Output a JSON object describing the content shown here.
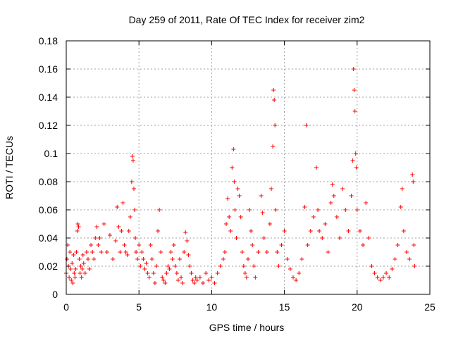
{
  "chart_data": {
    "type": "scatter",
    "title": "Day 259 of 2011, Rate Of TEC Index for receiver zim2",
    "xlabel": "GPS time / hours",
    "ylabel": "ROTI / TECUs",
    "xlim": [
      0,
      25
    ],
    "ylim": [
      0,
      0.18
    ],
    "x_ticks": [
      "0",
      "5",
      "10",
      "15",
      "20",
      "25"
    ],
    "y_ticks": [
      "0",
      "0.02",
      "0.04",
      "0.06",
      "0.08",
      "0.1",
      "0.12",
      "0.14",
      "0.16",
      "0.18"
    ],
    "grid": true,
    "marker": "+",
    "color": "#ff0000",
    "points": [
      [
        0.0,
        0.015
      ],
      [
        0.05,
        0.025
      ],
      [
        0.1,
        0.035
      ],
      [
        0.15,
        0.02
      ],
      [
        0.2,
        0.012
      ],
      [
        0.25,
        0.03
      ],
      [
        0.3,
        0.018
      ],
      [
        0.35,
        0.01
      ],
      [
        0.4,
        0.022
      ],
      [
        0.45,
        0.008
      ],
      [
        0.5,
        0.028
      ],
      [
        0.55,
        0.015
      ],
      [
        0.6,
        0.012
      ],
      [
        0.65,
        0.018
      ],
      [
        0.7,
        0.03
      ],
      [
        0.75,
        0.045
      ],
      [
        0.8,
        0.05
      ],
      [
        0.85,
        0.048
      ],
      [
        0.9,
        0.025
      ],
      [
        0.95,
        0.015
      ],
      [
        1.0,
        0.02
      ],
      [
        1.05,
        0.012
      ],
      [
        1.1,
        0.018
      ],
      [
        1.15,
        0.028
      ],
      [
        1.2,
        0.022
      ],
      [
        1.3,
        0.015
      ],
      [
        1.4,
        0.03
      ],
      [
        1.5,
        0.025
      ],
      [
        1.6,
        0.018
      ],
      [
        1.7,
        0.035
      ],
      [
        1.8,
        0.03
      ],
      [
        1.9,
        0.025
      ],
      [
        2.0,
        0.04
      ],
      [
        2.1,
        0.048
      ],
      [
        2.2,
        0.035
      ],
      [
        2.3,
        0.04
      ],
      [
        2.4,
        0.03
      ],
      [
        2.6,
        0.05
      ],
      [
        2.8,
        0.03
      ],
      [
        3.0,
        0.042
      ],
      [
        3.2,
        0.025
      ],
      [
        3.4,
        0.038
      ],
      [
        3.5,
        0.062
      ],
      [
        3.6,
        0.048
      ],
      [
        3.7,
        0.03
      ],
      [
        3.8,
        0.045
      ],
      [
        3.9,
        0.065
      ],
      [
        4.0,
        0.035
      ],
      [
        4.1,
        0.03
      ],
      [
        4.2,
        0.028
      ],
      [
        4.3,
        0.045
      ],
      [
        4.4,
        0.055
      ],
      [
        4.5,
        0.08
      ],
      [
        4.55,
        0.098
      ],
      [
        4.6,
        0.095
      ],
      [
        4.65,
        0.075
      ],
      [
        4.7,
        0.06
      ],
      [
        4.75,
        0.04
      ],
      [
        4.8,
        0.03
      ],
      [
        4.9,
        0.025
      ],
      [
        5.0,
        0.035
      ],
      [
        5.1,
        0.02
      ],
      [
        5.2,
        0.03
      ],
      [
        5.3,
        0.025
      ],
      [
        5.4,
        0.018
      ],
      [
        5.5,
        0.022
      ],
      [
        5.6,
        0.015
      ],
      [
        5.7,
        0.012
      ],
      [
        5.8,
        0.035
      ],
      [
        5.9,
        0.025
      ],
      [
        6.0,
        0.015
      ],
      [
        6.1,
        0.008
      ],
      [
        6.2,
        0.02
      ],
      [
        6.3,
        0.045
      ],
      [
        6.4,
        0.06
      ],
      [
        6.5,
        0.03
      ],
      [
        6.6,
        0.012
      ],
      [
        6.7,
        0.01
      ],
      [
        6.8,
        0.008
      ],
      [
        6.9,
        0.015
      ],
      [
        7.0,
        0.02
      ],
      [
        7.1,
        0.018
      ],
      [
        7.2,
        0.03
      ],
      [
        7.3,
        0.025
      ],
      [
        7.4,
        0.035
      ],
      [
        7.5,
        0.02
      ],
      [
        7.6,
        0.015
      ],
      [
        7.7,
        0.01
      ],
      [
        7.8,
        0.025
      ],
      [
        7.9,
        0.012
      ],
      [
        8.0,
        0.008
      ],
      [
        8.1,
        0.03
      ],
      [
        8.2,
        0.044
      ],
      [
        8.3,
        0.038
      ],
      [
        8.4,
        0.028
      ],
      [
        8.5,
        0.02
      ],
      [
        8.6,
        0.015
      ],
      [
        8.7,
        0.01
      ],
      [
        8.8,
        0.008
      ],
      [
        8.9,
        0.012
      ],
      [
        9.0,
        0.01
      ],
      [
        9.2,
        0.012
      ],
      [
        9.4,
        0.008
      ],
      [
        9.6,
        0.015
      ],
      [
        9.8,
        0.01
      ],
      [
        10.0,
        0.012
      ],
      [
        10.2,
        0.008
      ],
      [
        10.4,
        0.015
      ],
      [
        10.6,
        0.02
      ],
      [
        10.8,
        0.025
      ],
      [
        10.9,
        0.03
      ],
      [
        11.0,
        0.05
      ],
      [
        11.1,
        0.068
      ],
      [
        11.2,
        0.055
      ],
      [
        11.3,
        0.045
      ],
      [
        11.4,
        0.09
      ],
      [
        11.5,
        0.103
      ],
      [
        11.55,
        0.08
      ],
      [
        11.6,
        0.06
      ],
      [
        11.7,
        0.04
      ],
      [
        11.8,
        0.075
      ],
      [
        11.9,
        0.07
      ],
      [
        12.0,
        0.055
      ],
      [
        12.1,
        0.03
      ],
      [
        12.2,
        0.02
      ],
      [
        12.3,
        0.015
      ],
      [
        12.4,
        0.012
      ],
      [
        12.5,
        0.025
      ],
      [
        12.6,
        0.06
      ],
      [
        12.7,
        0.045
      ],
      [
        12.8,
        0.035
      ],
      [
        12.9,
        0.02
      ],
      [
        13.0,
        0.012
      ],
      [
        13.2,
        0.03
      ],
      [
        13.4,
        0.07
      ],
      [
        13.5,
        0.058
      ],
      [
        13.6,
        0.04
      ],
      [
        13.8,
        0.03
      ],
      [
        14.0,
        0.05
      ],
      [
        14.1,
        0.075
      ],
      [
        14.2,
        0.105
      ],
      [
        14.25,
        0.145
      ],
      [
        14.3,
        0.138
      ],
      [
        14.35,
        0.12
      ],
      [
        14.4,
        0.06
      ],
      [
        14.5,
        0.03
      ],
      [
        14.6,
        0.02
      ],
      [
        14.8,
        0.035
      ],
      [
        15.0,
        0.045
      ],
      [
        15.2,
        0.025
      ],
      [
        15.4,
        0.018
      ],
      [
        15.6,
        0.012
      ],
      [
        15.8,
        0.01
      ],
      [
        16.0,
        0.015
      ],
      [
        16.2,
        0.025
      ],
      [
        16.4,
        0.062
      ],
      [
        16.5,
        0.12
      ],
      [
        16.6,
        0.035
      ],
      [
        16.8,
        0.045
      ],
      [
        17.0,
        0.055
      ],
      [
        17.2,
        0.09
      ],
      [
        17.3,
        0.06
      ],
      [
        17.4,
        0.045
      ],
      [
        17.6,
        0.04
      ],
      [
        17.8,
        0.05
      ],
      [
        18.0,
        0.03
      ],
      [
        18.2,
        0.065
      ],
      [
        18.3,
        0.078
      ],
      [
        18.4,
        0.07
      ],
      [
        18.6,
        0.055
      ],
      [
        18.8,
        0.04
      ],
      [
        19.0,
        0.075
      ],
      [
        19.2,
        0.06
      ],
      [
        19.4,
        0.045
      ],
      [
        19.6,
        0.07
      ],
      [
        19.7,
        0.095
      ],
      [
        19.75,
        0.16
      ],
      [
        19.8,
        0.145
      ],
      [
        19.85,
        0.13
      ],
      [
        19.9,
        0.1
      ],
      [
        19.95,
        0.09
      ],
      [
        20.0,
        0.06
      ],
      [
        20.2,
        0.045
      ],
      [
        20.4,
        0.035
      ],
      [
        20.6,
        0.065
      ],
      [
        20.8,
        0.04
      ],
      [
        21.0,
        0.02
      ],
      [
        21.2,
        0.015
      ],
      [
        21.4,
        0.012
      ],
      [
        21.6,
        0.01
      ],
      [
        21.8,
        0.012
      ],
      [
        22.0,
        0.015
      ],
      [
        22.2,
        0.012
      ],
      [
        22.4,
        0.018
      ],
      [
        22.6,
        0.025
      ],
      [
        22.8,
        0.035
      ],
      [
        23.0,
        0.062
      ],
      [
        23.1,
        0.075
      ],
      [
        23.2,
        0.045
      ],
      [
        23.4,
        0.03
      ],
      [
        23.6,
        0.025
      ],
      [
        23.8,
        0.085
      ],
      [
        23.85,
        0.08
      ],
      [
        23.9,
        0.035
      ],
      [
        23.95,
        0.02
      ]
    ]
  }
}
